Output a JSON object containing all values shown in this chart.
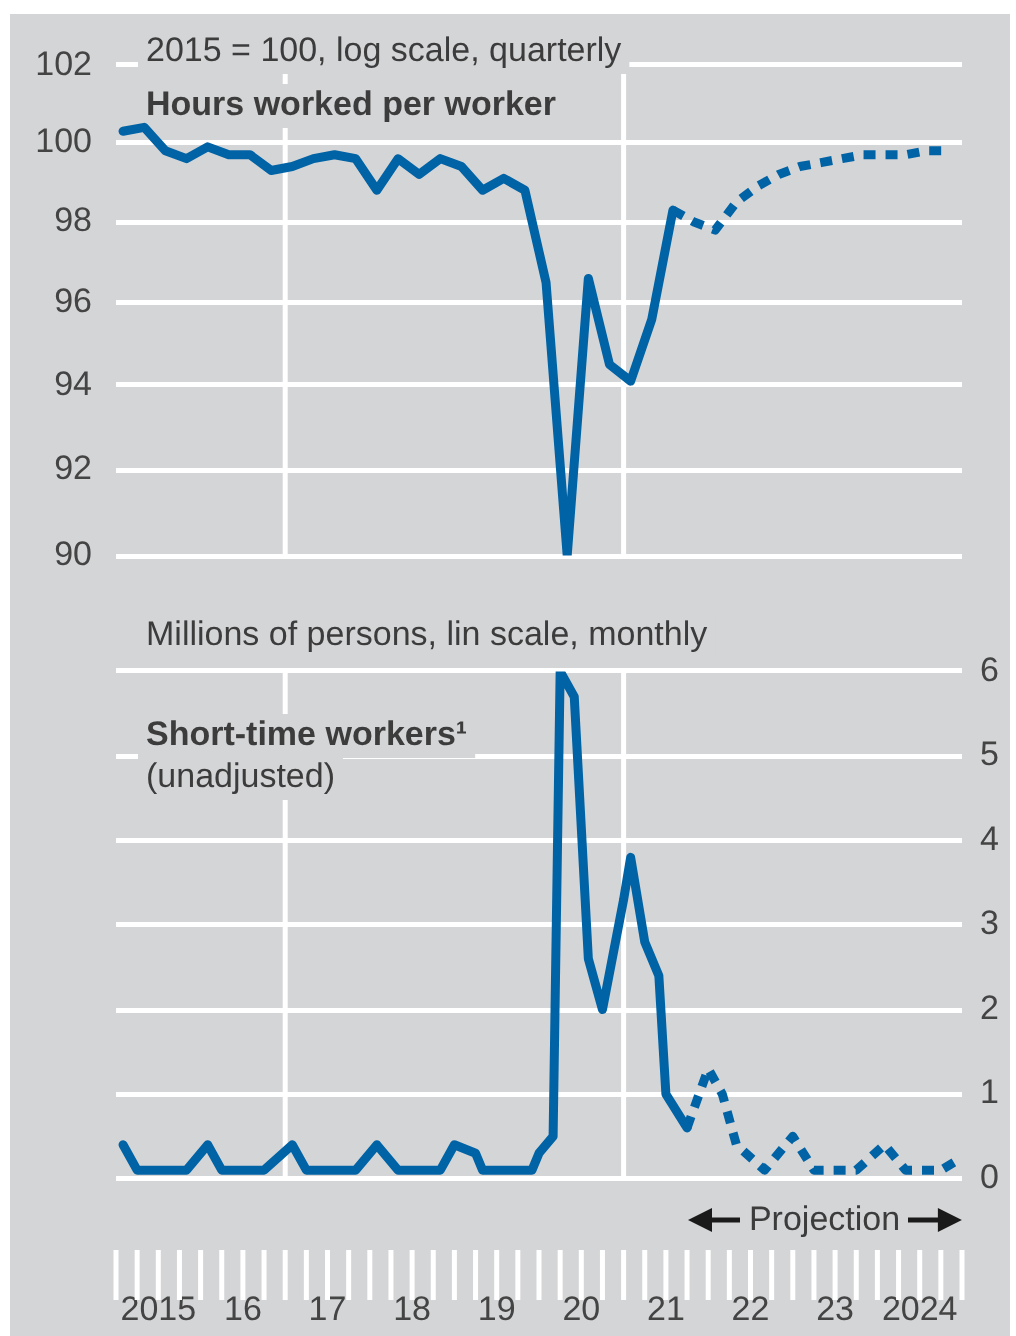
{
  "chart_data": [
    {
      "type": "line",
      "title": "Hours worked per worker",
      "ylabel": "2015 = 100, log scale, quarterly",
      "log": true,
      "xlim": [
        "2015",
        "2025"
      ],
      "ylim": [
        90,
        102
      ],
      "yticks": [
        90,
        92,
        94,
        96,
        98,
        100,
        102
      ],
      "grid": "y",
      "tick_labels": "y",
      "ref_lines": [
        {
          "axis": "x",
          "value": "2017",
          "color": "#ffffff"
        },
        {
          "axis": "x",
          "value": "2021",
          "color": "#ffffff"
        }
      ],
      "series": [
        {
          "color": "#0063a6",
          "x": [
            "2015-02",
            "2015-05",
            "2015-08",
            "2015-11",
            "2016-02",
            "2016-05",
            "2016-08",
            "2016-11",
            "2017-02",
            "2017-05",
            "2017-08",
            "2017-11",
            "2018-02",
            "2018-05",
            "2018-08",
            "2018-11",
            "2019-02",
            "2019-05",
            "2019-08",
            "2019-11",
            "2020-02",
            "2020-05",
            "2020-08",
            "2020-11",
            "2021-02",
            "2021-05",
            "2021-08"
          ],
          "values": [
            100.3,
            100.4,
            99.8,
            99.6,
            99.9,
            99.7,
            99.7,
            99.3,
            99.4,
            99.6,
            99.7,
            99.6,
            98.8,
            99.6,
            99.2,
            99.6,
            99.4,
            98.8,
            99.1,
            98.8,
            96.5,
            90.0,
            96.6,
            94.5,
            94.1,
            95.6,
            98.3
          ]
        },
        {
          "color": "#0063a6",
          "line_style": "dashed",
          "x": [
            "2021-08",
            "2021-11",
            "2022-02",
            "2022-05",
            "2022-08",
            "2022-11",
            "2023-02",
            "2023-05",
            "2023-08",
            "2023-11",
            "2024-02",
            "2024-05",
            "2024-08",
            "2024-11"
          ],
          "values": [
            98.3,
            98.0,
            97.8,
            98.5,
            98.9,
            99.2,
            99.4,
            99.5,
            99.6,
            99.7,
            99.7,
            99.7,
            99.8,
            99.8
          ]
        }
      ]
    },
    {
      "type": "line",
      "title": "Short-time workers¹",
      "subtitle": "(unadjusted)",
      "ylabel": "Millions of persons, lin scale, monthly",
      "xlim": [
        "2015",
        "2025"
      ],
      "xticks": [
        {
          "value": "2015-07",
          "label": "2015"
        },
        {
          "value": "2016-07",
          "label": "16"
        },
        {
          "value": "2017-07",
          "label": "17"
        },
        {
          "value": "2018-07",
          "label": "18"
        },
        {
          "value": "2019-07",
          "label": "19"
        },
        {
          "value": "2020-07",
          "label": "20"
        },
        {
          "value": "2021-07",
          "label": "21"
        },
        {
          "value": "2022-07",
          "label": "22"
        },
        {
          "value": "2023-07",
          "label": "23"
        },
        {
          "value": "2024-07",
          "label": "2024"
        }
      ],
      "ylim": [
        0,
        6
      ],
      "yticks": [
        0,
        1,
        2,
        3,
        4,
        5,
        6
      ],
      "grid": "y",
      "ref_lines": [
        {
          "axis": "x",
          "value": "2017",
          "color": "#ffffff"
        },
        {
          "axis": "x",
          "value": "2021",
          "color": "#ffffff"
        }
      ],
      "annotations": [
        "Projection"
      ],
      "series": [
        {
          "color": "#0063a6",
          "x": [
            "2015-02",
            "2015-04",
            "2015-08",
            "2015-11",
            "2016-02",
            "2016-04",
            "2016-10",
            "2017-02",
            "2017-04",
            "2017-11",
            "2018-02",
            "2018-05",
            "2018-11",
            "2019-01",
            "2019-04",
            "2019-05",
            "2019-09",
            "2019-12",
            "2020-01",
            "2020-03",
            "2020-04",
            "2020-06",
            "2020-08",
            "2020-10",
            "2021-01",
            "2021-02",
            "2021-04",
            "2021-06",
            "2021-07",
            "2021-10"
          ],
          "values": [
            0.4,
            0.1,
            0.1,
            0.1,
            0.4,
            0.1,
            0.1,
            0.4,
            0.1,
            0.1,
            0.4,
            0.1,
            0.1,
            0.4,
            0.3,
            0.1,
            0.1,
            0.1,
            0.3,
            0.5,
            6.0,
            5.7,
            2.6,
            2.0,
            3.3,
            3.8,
            2.8,
            2.4,
            1.0,
            0.6
          ]
        },
        {
          "color": "#0063a6",
          "line_style": "dashed",
          "x": [
            "2021-10",
            "2022-01",
            "2022-03",
            "2022-05",
            "2022-09",
            "2023-01",
            "2023-04",
            "2023-10",
            "2024-02",
            "2024-05",
            "2024-10",
            "2024-12"
          ],
          "values": [
            0.6,
            1.3,
            1.0,
            0.4,
            0.1,
            0.5,
            0.1,
            0.1,
            0.4,
            0.1,
            0.1,
            0.2
          ]
        }
      ]
    }
  ]
}
